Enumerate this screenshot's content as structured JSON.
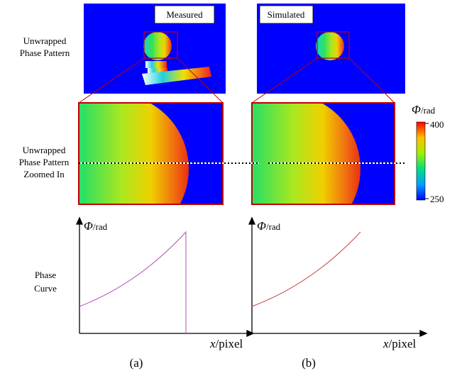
{
  "columns": {
    "measured": "Measured",
    "simulated": "Simulated"
  },
  "row_labels": {
    "pattern": [
      "Unwrapped",
      "Phase Pattern"
    ],
    "zoomed": [
      "Unwrapped",
      "Phase Pattern",
      "Zoomed In"
    ],
    "curve": [
      "Phase",
      "Curve"
    ]
  },
  "colorbar": {
    "symbol": "Φ",
    "unit": "/rad",
    "max": "400",
    "min": "250"
  },
  "plots": {
    "y_label": {
      "symbol": "Φ",
      "unit": "/rad"
    },
    "x_label": {
      "symbol": "x",
      "unit": "/pixel"
    }
  },
  "captions": [
    "(a)",
    "(b)"
  ]
}
